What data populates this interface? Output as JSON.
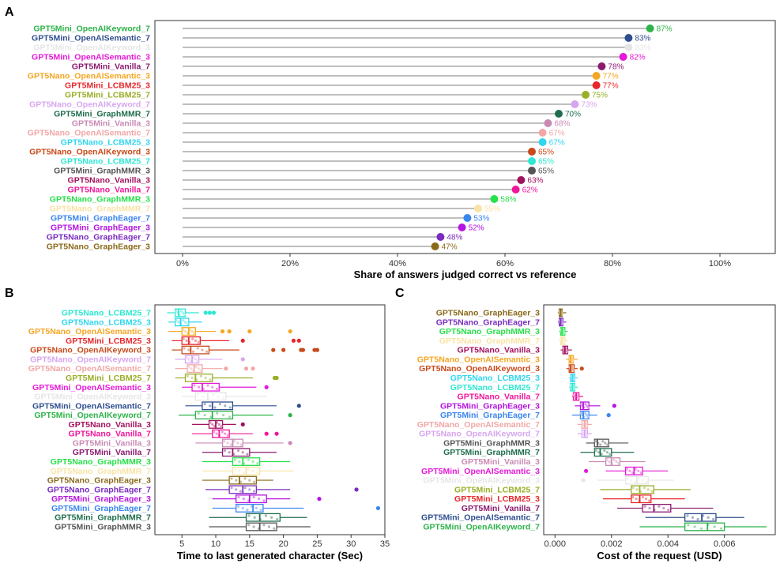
{
  "panels": {
    "a": "A",
    "b": "B",
    "c": "C"
  },
  "chart_data": [
    {
      "type": "lollipop",
      "xlabel": "Share of answers judged correct vs reference",
      "xlim": [
        0,
        100
      ],
      "ticks": [
        "0%",
        "20%",
        "40%",
        "60%",
        "80%",
        "100%"
      ],
      "grid": false,
      "categories": [
        {
          "label": "GPT5Mini_OpenAIKeyword_7",
          "value": 87,
          "text": "87%",
          "color": "#2db34a"
        },
        {
          "label": "GPT5Mini_OpenAISemantic_7",
          "value": 83,
          "text": "83%",
          "color": "#2f4e8f"
        },
        {
          "label": "GPT5Mini_OpenAIKeyword_3",
          "value": 83,
          "text": "83%",
          "color": "#e6e6e6"
        },
        {
          "label": "GPT5Mini_OpenAISemantic_3",
          "value": 82,
          "text": "82%",
          "color": "#e619d8"
        },
        {
          "label": "GPT5Mini_Vanilla_7",
          "value": 78,
          "text": "78%",
          "color": "#8b1a6f"
        },
        {
          "label": "GPT5Nano_OpenAISemantic_3",
          "value": 77,
          "text": "77%",
          "color": "#f5a623"
        },
        {
          "label": "GPT5Mini_LCBM25_3",
          "value": 77,
          "text": "77%",
          "color": "#e8272a"
        },
        {
          "label": "GPT5Mini_LCBM25_7",
          "value": 75,
          "text": "75%",
          "color": "#9aae28"
        },
        {
          "label": "GPT5Nano_OpenAIKeyword_7",
          "value": 73,
          "text": "73%",
          "color": "#d7a6ef"
        },
        {
          "label": "GPT5Mini_GraphMMR_7",
          "value": 70,
          "text": "70%",
          "color": "#1f6e4e"
        },
        {
          "label": "GPT5Mini_Vanilla_3",
          "value": 68,
          "text": "68%",
          "color": "#c98ab4"
        },
        {
          "label": "GPT5Nano_OpenAISemantic_7",
          "value": 67,
          "text": "67%",
          "color": "#f2a7a7"
        },
        {
          "label": "GPT5Nano_LCBM25_3",
          "value": 67,
          "text": "67%",
          "color": "#2fd6ef"
        },
        {
          "label": "GPT5Nano_OpenAIKeyword_3",
          "value": 65,
          "text": "65%",
          "color": "#c84a1a"
        },
        {
          "label": "GPT5Nano_LCBM25_7",
          "value": 65,
          "text": "65%",
          "color": "#2ee8d2"
        },
        {
          "label": "GPT5Mini_GraphMMR_3",
          "value": 65,
          "text": "65%",
          "color": "#555555"
        },
        {
          "label": "GPT5Nano_Vanilla_3",
          "value": 63,
          "text": "63%",
          "color": "#a3125e"
        },
        {
          "label": "GPT5Nano_Vanilla_7",
          "value": 62,
          "text": "62%",
          "color": "#f0179a"
        },
        {
          "label": "GPT5Nano_GraphMMR_3",
          "value": 58,
          "text": "58%",
          "color": "#27e04a"
        },
        {
          "label": "GPT5Nano_GraphMMR_7",
          "value": 55,
          "text": "55%",
          "color": "#f8e3a5"
        },
        {
          "label": "GPT5Mini_GraphEager_7",
          "value": 53,
          "text": "53%",
          "color": "#3a86f0"
        },
        {
          "label": "GPT5Mini_GraphEager_3",
          "value": 52,
          "text": "52%",
          "color": "#b514e0"
        },
        {
          "label": "GPT5Nano_GraphEager_7",
          "value": 48,
          "text": "48%",
          "color": "#7a2cc0"
        },
        {
          "label": "GPT5Nano_GraphEager_3",
          "value": 47,
          "text": "47%",
          "color": "#8a6a1a"
        }
      ]
    },
    {
      "type": "boxplot",
      "xlabel": "Time to last generated character (Sec)",
      "xlim": [
        1,
        35
      ],
      "ticks": [
        5,
        10,
        15,
        20,
        25,
        30,
        35
      ],
      "categories": [
        {
          "label": "GPT5Nano_LCBM25_7",
          "color": "#2ee8d2",
          "box": [
            2.8,
            4,
            4.5,
            5.5,
            7.5
          ],
          "out": [
            8.5,
            9.1,
            9.7
          ]
        },
        {
          "label": "GPT5Nano_LCBM25_3",
          "color": "#2fd6ef",
          "box": [
            3,
            4,
            4.8,
            6,
            8
          ],
          "out": []
        },
        {
          "label": "GPT5Nano_OpenAISemantic_3",
          "color": "#f5a623",
          "box": [
            3,
            5,
            6,
            7,
            10
          ],
          "out": [
            11,
            12,
            15,
            21
          ]
        },
        {
          "label": "GPT5Mini_LCBM25_3",
          "color": "#e8272a",
          "box": [
            3.5,
            5,
            6,
            7.7,
            12
          ],
          "out": [
            14,
            21.5,
            22.3
          ]
        },
        {
          "label": "GPT5Nano_OpenAIKeyword_3",
          "color": "#c84a1a",
          "box": [
            3.5,
            5,
            6.3,
            9,
            13.5
          ],
          "out": [
            18.5,
            20,
            22.6,
            22.9,
            24.6,
            25
          ]
        },
        {
          "label": "GPT5Nano_OpenAIKeyword_7",
          "color": "#d7a6ef",
          "box": [
            4,
            5.5,
            6.5,
            7.5,
            11
          ],
          "out": [
            14
          ]
        },
        {
          "label": "GPT5Nano_OpenAISemantic_7",
          "color": "#f2a7a7",
          "box": [
            4,
            5.8,
            6.8,
            8,
            11
          ],
          "out": [
            11.5,
            14.5,
            15.5
          ]
        },
        {
          "label": "GPT5Mini_LCBM25_7",
          "color": "#9aae28",
          "box": [
            4,
            5.5,
            7,
            9.5,
            15.5
          ],
          "out": [
            18.7,
            19
          ]
        },
        {
          "label": "GPT5Mini_OpenAISemantic_3",
          "color": "#e619d8",
          "box": [
            5,
            6.5,
            8,
            10.5,
            16
          ],
          "out": [
            17.5
          ]
        },
        {
          "label": "GPT5Mini_OpenAIKeyword_3",
          "color": "#e6e6e6",
          "box": [
            5,
            7,
            8.8,
            11.5,
            17.5
          ],
          "out": []
        },
        {
          "label": "GPT5Mini_OpenAISemantic_7",
          "color": "#2f4e8f",
          "box": [
            5.5,
            8,
            9.5,
            12.5,
            19
          ],
          "out": [
            22.3
          ]
        },
        {
          "label": "GPT5Mini_OpenAIKeyword_7",
          "color": "#2db34a",
          "box": [
            4.5,
            7,
            9.5,
            12.5,
            18.5
          ],
          "out": [
            21
          ]
        },
        {
          "label": "GPT5Nano_Vanilla_3",
          "color": "#a3125e",
          "box": [
            6.5,
            9,
            10,
            11,
            13
          ],
          "out": [
            14
          ]
        },
        {
          "label": "GPT5Nano_Vanilla_7",
          "color": "#f0179a",
          "box": [
            6.5,
            9.5,
            10.5,
            12,
            15.5
          ],
          "out": [
            17.5,
            19
          ]
        },
        {
          "label": "GPT5Mini_Vanilla_3",
          "color": "#c98ab4",
          "box": [
            7,
            11,
            12.5,
            14,
            20
          ],
          "out": [
            21
          ]
        },
        {
          "label": "GPT5Mini_Vanilla_7",
          "color": "#8b1a6f",
          "box": [
            8,
            11,
            12.5,
            15,
            19
          ],
          "out": []
        },
        {
          "label": "GPT5Nano_GraphMMR_3",
          "color": "#27e04a",
          "box": [
            8,
            12.5,
            14,
            16.5,
            21
          ],
          "out": []
        },
        {
          "label": "GPT5Nano_GraphMMR_7",
          "color": "#f8e3a5",
          "box": [
            8,
            12.5,
            14.5,
            16.5,
            21.5
          ],
          "out": []
        },
        {
          "label": "GPT5Nano_GraphEager_3",
          "color": "#8a6a1a",
          "box": [
            8,
            12,
            13.5,
            16,
            18.5
          ],
          "out": []
        },
        {
          "label": "GPT5Nano_GraphEager_7",
          "color": "#7a2cc0",
          "box": [
            8.5,
            12,
            14,
            16,
            21
          ],
          "out": [
            30.8
          ]
        },
        {
          "label": "GPT5Mini_GraphEager_3",
          "color": "#b514e0",
          "box": [
            9.5,
            13,
            15,
            17.5,
            21
          ],
          "out": [
            25.3
          ]
        },
        {
          "label": "GPT5Mini_GraphEager_7",
          "color": "#3a86f0",
          "box": [
            9.5,
            13,
            15.5,
            17,
            23
          ],
          "out": [
            34
          ]
        },
        {
          "label": "GPT5Mini_GraphMMR_7",
          "color": "#1f6e4e",
          "box": [
            9,
            14.5,
            16.5,
            19.5,
            23.5
          ],
          "out": []
        },
        {
          "label": "GPT5Mini_GraphMMR_3",
          "color": "#555555",
          "box": [
            9,
            14.5,
            16.5,
            19,
            24
          ],
          "out": []
        }
      ]
    },
    {
      "type": "boxplot",
      "xlabel": "Cost of the request (USD)",
      "xlim": [
        -0.0004,
        0.0078
      ],
      "ticks": [
        "0.000",
        "0.002",
        "0.004",
        "0.006"
      ],
      "tick_values": [
        0,
        0.002,
        0.004,
        0.006
      ],
      "categories": [
        {
          "label": "GPT5Nano_GraphEager_3",
          "color": "#8a6a1a",
          "box": [
            0.0001,
            0.00015,
            0.0002,
            0.00025,
            0.0004
          ],
          "out": []
        },
        {
          "label": "GPT5Nano_GraphEager_7",
          "color": "#7a2cc0",
          "box": [
            0.0001,
            0.00015,
            0.0002,
            0.00028,
            0.0004
          ],
          "out": []
        },
        {
          "label": "GPT5Nano_GraphMMR_3",
          "color": "#27e04a",
          "box": [
            0.00015,
            0.0002,
            0.00025,
            0.00035,
            0.00045
          ],
          "out": []
        },
        {
          "label": "GPT5Nano_GraphMMR_7",
          "color": "#f8e3a5",
          "box": [
            0.00015,
            0.0002,
            0.00025,
            0.00035,
            0.00045
          ],
          "out": []
        },
        {
          "label": "GPT5Nano_Vanilla_3",
          "color": "#a3125e",
          "box": [
            0.0002,
            0.00028,
            0.00035,
            0.00045,
            0.0006
          ],
          "out": []
        },
        {
          "label": "GPT5Nano_OpenAISemantic_3",
          "color": "#f5a623",
          "box": [
            0.0004,
            0.0005,
            0.00055,
            0.00065,
            0.0008
          ],
          "out": []
        },
        {
          "label": "GPT5Nano_OpenAIKeyword_3",
          "color": "#c84a1a",
          "box": [
            0.0004,
            0.0005,
            0.00055,
            0.00068,
            0.0008
          ],
          "out": [
            0.00095
          ]
        },
        {
          "label": "GPT5Nano_LCBM25_3",
          "color": "#2fd6ef",
          "box": [
            0.0005,
            0.00055,
            0.00062,
            0.0007,
            0.0008
          ],
          "out": []
        },
        {
          "label": "GPT5Nano_LCBM25_7",
          "color": "#2ee8d2",
          "box": [
            0.0005,
            0.00055,
            0.00062,
            0.0007,
            0.0008
          ],
          "out": []
        },
        {
          "label": "GPT5Nano_Vanilla_7",
          "color": "#f0179a",
          "box": [
            0.0006,
            0.00065,
            0.00075,
            0.00085,
            0.001
          ],
          "out": []
        },
        {
          "label": "GPT5Mini_GraphEager_3",
          "color": "#b514e0",
          "box": [
            0.0007,
            0.0009,
            0.001,
            0.0012,
            0.0016
          ],
          "out": [
            0.0021
          ]
        },
        {
          "label": "GPT5Mini_GraphEager_7",
          "color": "#3a86f0",
          "box": [
            0.0006,
            0.0009,
            0.001,
            0.0012,
            0.0015
          ],
          "out": [
            0.0019
          ]
        },
        {
          "label": "GPT5Nano_OpenAISemantic_7",
          "color": "#f2a7a7",
          "box": [
            0.0008,
            0.00095,
            0.00105,
            0.00115,
            0.0013
          ],
          "out": []
        },
        {
          "label": "GPT5Nano_OpenAIKeyword_7",
          "color": "#d7a6ef",
          "box": [
            0.0008,
            0.00095,
            0.00105,
            0.00115,
            0.0013
          ],
          "out": []
        },
        {
          "label": "GPT5Mini_GraphMMR_3",
          "color": "#555555",
          "box": [
            0.0011,
            0.0014,
            0.0015,
            0.0019,
            0.0026
          ],
          "out": []
        },
        {
          "label": "GPT5Mini_GraphMMR_7",
          "color": "#1f6e4e",
          "box": [
            0.0009,
            0.0014,
            0.0016,
            0.002,
            0.0028
          ],
          "out": []
        },
        {
          "label": "GPT5Mini_Vanilla_3",
          "color": "#c98ab4",
          "box": [
            0.0012,
            0.0018,
            0.002,
            0.0023,
            0.0032
          ],
          "out": []
        },
        {
          "label": "GPT5Mini_OpenAISemantic_3",
          "color": "#e619d8",
          "box": [
            0.0018,
            0.0025,
            0.0028,
            0.0031,
            0.004
          ],
          "out": [
            0.0011
          ]
        },
        {
          "label": "GPT5Mini_OpenAIKeyword_3",
          "color": "#e6e6e6",
          "box": [
            0.0015,
            0.0025,
            0.0029,
            0.0033,
            0.0042
          ],
          "out": [
            0.001
          ]
        },
        {
          "label": "GPT5Mini_LCBM25_7",
          "color": "#9aae28",
          "box": [
            0.0016,
            0.0027,
            0.003,
            0.0035,
            0.0048
          ],
          "out": []
        },
        {
          "label": "GPT5Mini_LCBM25_3",
          "color": "#e8272a",
          "box": [
            0.0017,
            0.0027,
            0.003,
            0.0034,
            0.0046
          ],
          "out": []
        },
        {
          "label": "GPT5Mini_Vanilla_7",
          "color": "#8b1a6f",
          "box": [
            0.0022,
            0.0031,
            0.0035,
            0.0041,
            0.0056
          ],
          "out": []
        },
        {
          "label": "GPT5Mini_OpenAISemantic_7",
          "color": "#2f4e8f",
          "box": [
            0.0032,
            0.0046,
            0.0052,
            0.0057,
            0.0067
          ],
          "out": []
        },
        {
          "label": "GPT5Mini_OpenAIKeyword_7",
          "color": "#2db34a",
          "box": [
            0.003,
            0.0046,
            0.0054,
            0.006,
            0.0075
          ],
          "out": []
        }
      ]
    }
  ]
}
